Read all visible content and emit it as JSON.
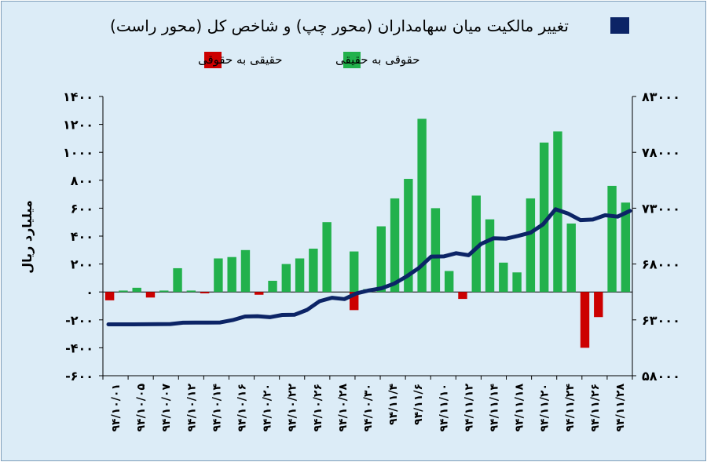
{
  "chart_data": {
    "type": "bar",
    "title": "تغییر مالکیت میان سهامداران (محور چپ) و شاخص کل (محور راست)",
    "ylabel": "میلیارد ریال",
    "ylim": [
      -600,
      1400
    ],
    "y2lim": [
      58000,
      83000
    ],
    "yticks": [
      "۱۴۰۰",
      "۱۲۰۰",
      "۱۰۰۰",
      "۸۰۰",
      "۶۰۰",
      "۴۰۰",
      "۲۰۰",
      "۰",
      "-۲۰۰",
      "-۴۰۰",
      "-۶۰۰"
    ],
    "y2ticks": [
      "۸۳۰۰۰",
      "۷۸۰۰۰",
      "۷۳۰۰۰",
      "۶۸۰۰۰",
      "۶۳۰۰۰",
      "۵۸۰۰۰"
    ],
    "x_tick_labels": [
      "۹۴/۱۰/۰۱",
      "۹۴/۱۰/۰۵",
      "۹۴/۱۰/۰۷",
      "۹۴/۱۰/۱۲",
      "۹۴/۱۰/۱۴",
      "۹۴/۱۰/۱۶",
      "۹۴/۱۰/۲۰",
      "۹۴/۱۰/۲۲",
      "۹۴/۱۰/۲۶",
      "۹۴/۱۰/۲۸",
      "۹۴/۱۰/۳۰",
      "۹۴/۱۱/۴",
      "۹۴/۱۱/۶",
      "۹۴/۱۱/۱۰",
      "۹۴/۱۱/۱۲",
      "۹۴/۱۱/۱۴",
      "۹۴/۱۱/۱۸",
      "۹۴/۱۱/۲۰",
      "۹۴/۱۱/۲۴",
      "۹۴/۱۱/۲۶",
      "۹۴/۱۱/۲۸"
    ],
    "series": [
      {
        "name": "حقوقی به حقیقی",
        "color": "#22b14c",
        "values": [
          0,
          10,
          30,
          0,
          10,
          170,
          10,
          0,
          240,
          250,
          300,
          0,
          80,
          200,
          240,
          310,
          500,
          0,
          290,
          20,
          470,
          670,
          810,
          1240,
          600,
          150,
          0,
          690,
          520,
          210,
          140,
          670,
          1070,
          1150,
          490,
          0,
          0,
          760,
          640
        ]
      },
      {
        "name": "حقیقی به حقوقی",
        "color": "#cc0000",
        "values": [
          -60,
          0,
          0,
          -40,
          0,
          0,
          0,
          -10,
          0,
          0,
          0,
          -20,
          0,
          0,
          0,
          0,
          0,
          0,
          -130,
          0,
          0,
          0,
          0,
          0,
          0,
          0,
          -50,
          0,
          0,
          0,
          0,
          0,
          0,
          0,
          0,
          -400,
          -180,
          0,
          0
        ]
      },
      {
        "name": "شاخص کل",
        "color": "#0c2466",
        "values": [
          62600,
          62600,
          62600,
          62610,
          62620,
          62630,
          62750,
          62760,
          62760,
          62770,
          62980,
          63300,
          63330,
          63240,
          63440,
          63460,
          63900,
          64670,
          64980,
          64860,
          65380,
          65640,
          65830,
          66240,
          66880,
          67640,
          68670,
          68680,
          68970,
          68790,
          69800,
          70300,
          70270,
          70520,
          70810,
          71550,
          72900,
          72520,
          71930,
          71980,
          72370,
          72240,
          72760
        ]
      }
    ],
    "index_dates_count": 43,
    "grid": false,
    "legend_position": "top"
  }
}
